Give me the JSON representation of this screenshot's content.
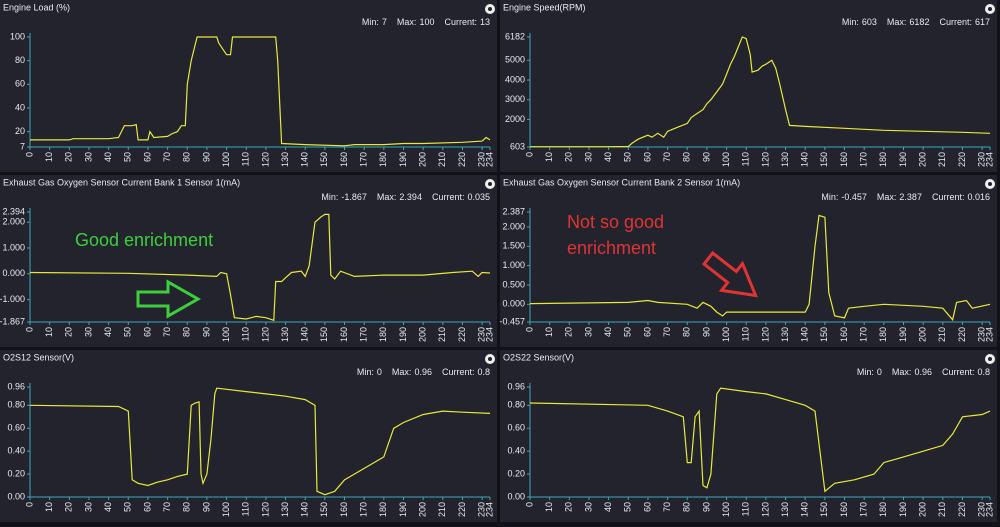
{
  "chart_data": [
    {
      "type": "line",
      "title": "Engine Load (%)",
      "stats": [
        {
          "label": "Min:",
          "value": 7
        },
        {
          "label": "Max:",
          "value": 100
        },
        {
          "label": "Current:",
          "value": 13
        }
      ],
      "x": [
        0,
        20,
        22,
        40,
        45,
        48,
        52,
        54,
        55,
        60,
        61,
        63,
        70,
        72,
        75,
        77,
        79,
        80,
        82,
        85,
        95,
        96,
        98,
        100,
        102,
        103,
        125,
        126,
        128,
        140,
        160,
        165,
        180,
        190,
        200,
        220,
        230,
        232,
        234
      ],
      "values": [
        13,
        13,
        14,
        14,
        15,
        25,
        25,
        26,
        13,
        13,
        20,
        15,
        16,
        18,
        20,
        25,
        25,
        60,
        80,
        100,
        100,
        95,
        90,
        85,
        85,
        100,
        100,
        80,
        10,
        9,
        8,
        9,
        9,
        10,
        10,
        11,
        12,
        15,
        13
      ],
      "color": "#e8e83a",
      "xlim": [
        0,
        234
      ],
      "xticks": [
        0,
        10,
        20,
        30,
        40,
        50,
        60,
        70,
        80,
        90,
        100,
        110,
        120,
        130,
        140,
        150,
        160,
        170,
        180,
        190,
        200,
        210,
        220,
        230,
        234
      ],
      "ylim": [
        7,
        100
      ],
      "yticks": [
        7,
        20,
        40,
        60,
        80,
        100
      ]
    },
    {
      "type": "line",
      "title": "Engine Speed(RPM)",
      "stats": [
        {
          "label": "Min:",
          "value": 603
        },
        {
          "label": "Max:",
          "value": 6182
        },
        {
          "label": "Current:",
          "value": 617
        }
      ],
      "x": [
        0,
        40,
        50,
        52,
        55,
        60,
        62,
        65,
        68,
        70,
        75,
        80,
        82,
        85,
        88,
        90,
        92,
        95,
        98,
        100,
        102,
        104,
        106,
        108,
        110,
        112,
        113,
        116,
        118,
        120,
        123,
        125,
        127,
        130,
        132,
        140,
        160,
        180,
        200,
        220,
        234
      ],
      "values": [
        620,
        620,
        630,
        800,
        1000,
        1200,
        1100,
        1300,
        1100,
        1400,
        1600,
        1800,
        2100,
        2300,
        2500,
        2800,
        3000,
        3400,
        3800,
        4300,
        4800,
        5200,
        5700,
        6182,
        6100,
        5300,
        4400,
        4500,
        4700,
        4800,
        5000,
        4600,
        3800,
        2500,
        1700,
        1650,
        1550,
        1450,
        1400,
        1350,
        1300
      ],
      "color": "#e8e83a",
      "xlim": [
        0,
        234
      ],
      "xticks": [
        0,
        10,
        20,
        30,
        40,
        50,
        60,
        70,
        80,
        90,
        100,
        110,
        120,
        130,
        140,
        150,
        160,
        170,
        180,
        190,
        200,
        210,
        220,
        230,
        234
      ],
      "ylim": [
        603,
        6182
      ],
      "yticks": [
        603,
        2000,
        3000,
        4000,
        5000,
        6182
      ]
    },
    {
      "type": "line",
      "title": "Exhaust Gas Oxygen Sensor Current Bank 1 Sensor 1(mA)",
      "stats": [
        {
          "label": "Min:",
          "value": -1.867
        },
        {
          "label": "Max:",
          "value": 2.394
        },
        {
          "label": "Current:",
          "value": 0.035
        }
      ],
      "annotation": [
        "Good enrichment"
      ],
      "x": [
        0,
        50,
        80,
        95,
        97,
        100,
        102,
        104,
        110,
        115,
        120,
        124,
        125,
        128,
        130,
        133,
        138,
        140,
        142,
        145,
        148,
        150,
        152,
        153,
        155,
        158,
        165,
        180,
        200,
        215,
        225,
        228,
        230,
        234
      ],
      "values": [
        0.05,
        0.02,
        -0.05,
        -0.1,
        0.05,
        0.0,
        -0.8,
        -1.7,
        -1.75,
        -1.65,
        -1.7,
        -1.8,
        -0.3,
        -0.3,
        -0.15,
        0.05,
        0.1,
        -0.1,
        0.3,
        2.0,
        2.2,
        2.3,
        2.3,
        -0.05,
        -0.2,
        0.1,
        -0.1,
        -0.05,
        -0.05,
        0.05,
        0.1,
        -0.1,
        0.05,
        0.03
      ],
      "color": "#e8e83a",
      "xlim": [
        0,
        234
      ],
      "xticks": [
        0,
        10,
        20,
        30,
        40,
        50,
        60,
        70,
        80,
        90,
        100,
        110,
        120,
        130,
        140,
        150,
        160,
        170,
        180,
        190,
        200,
        210,
        220,
        230,
        234
      ],
      "ylim": [
        -1.867,
        2.394
      ],
      "yticks": [
        -1.867,
        {
          "value": -1,
          "label": "-1.000"
        },
        {
          "value": 0,
          "label": "0.000"
        },
        {
          "value": 1,
          "label": "1.000"
        },
        {
          "value": 2,
          "label": "2.000"
        },
        2.394
      ]
    },
    {
      "type": "line",
      "title": "Exhaust Gas Oxygen Sensor Current Bank 2 Sensor 1(mA)",
      "stats": [
        {
          "label": "Min:",
          "value": -0.457
        },
        {
          "label": "Max:",
          "value": 2.387
        },
        {
          "label": "Current:",
          "value": 0.016
        }
      ],
      "annotation": [
        "Not so good",
        "enrichment"
      ],
      "x": [
        0,
        50,
        60,
        65,
        80,
        85,
        88,
        92,
        95,
        98,
        100,
        140,
        142,
        145,
        147,
        150,
        152,
        155,
        160,
        162,
        170,
        180,
        200,
        210,
        215,
        217,
        222,
        225,
        234
      ],
      "values": [
        0.02,
        0.05,
        0.1,
        0.05,
        0.0,
        -0.1,
        0.05,
        -0.05,
        -0.2,
        -0.3,
        -0.2,
        -0.2,
        0.0,
        1.5,
        2.3,
        2.25,
        0.3,
        -0.3,
        -0.35,
        -0.1,
        -0.05,
        0.0,
        -0.05,
        -0.1,
        -0.4,
        0.05,
        0.1,
        -0.1,
        0.0
      ],
      "color": "#e8e83a",
      "xlim": [
        0,
        234
      ],
      "xticks": [
        0,
        10,
        20,
        30,
        40,
        50,
        60,
        70,
        80,
        90,
        100,
        110,
        120,
        130,
        140,
        150,
        160,
        170,
        180,
        190,
        200,
        210,
        220,
        230,
        234
      ],
      "ylim": [
        -0.457,
        2.387
      ],
      "yticks": [
        -0.457,
        {
          "value": 0,
          "label": "0.000"
        },
        {
          "value": 0.5,
          "label": "0.500"
        },
        {
          "value": 1,
          "label": "1.000"
        },
        {
          "value": 1.5,
          "label": "1.500"
        },
        {
          "value": 2,
          "label": "2.000"
        },
        2.387
      ]
    },
    {
      "type": "line",
      "title": "O2S12 Sensor(V)",
      "stats": [
        {
          "label": "Min:",
          "value": 0
        },
        {
          "label": "Max:",
          "value": 0.96
        },
        {
          "label": "Current:",
          "value": 0.8
        }
      ],
      "x": [
        0,
        45,
        50,
        52,
        55,
        60,
        65,
        70,
        75,
        80,
        82,
        84,
        86,
        87,
        88,
        90,
        92,
        94,
        95,
        100,
        110,
        120,
        130,
        140,
        145,
        146,
        150,
        155,
        160,
        170,
        180,
        185,
        190,
        200,
        210,
        220,
        234
      ],
      "values": [
        0.8,
        0.79,
        0.75,
        0.15,
        0.12,
        0.1,
        0.13,
        0.15,
        0.18,
        0.2,
        0.8,
        0.82,
        0.83,
        0.2,
        0.12,
        0.2,
        0.5,
        0.9,
        0.95,
        0.94,
        0.92,
        0.9,
        0.88,
        0.85,
        0.8,
        0.05,
        0.02,
        0.05,
        0.15,
        0.25,
        0.35,
        0.6,
        0.65,
        0.72,
        0.75,
        0.74,
        0.73
      ],
      "color": "#e8e83a",
      "xlim": [
        0,
        234
      ],
      "xticks": [
        0,
        10,
        20,
        30,
        40,
        50,
        60,
        70,
        80,
        90,
        100,
        110,
        120,
        130,
        140,
        150,
        160,
        170,
        180,
        190,
        200,
        210,
        220,
        230,
        234
      ],
      "ylim": [
        0,
        0.96
      ],
      "yticks": [
        {
          "value": 0,
          "label": "0.00"
        },
        {
          "value": 0.2,
          "label": "0.20"
        },
        {
          "value": 0.4,
          "label": "0.40"
        },
        {
          "value": 0.6,
          "label": "0.60"
        },
        {
          "value": 0.8,
          "label": "0.80"
        },
        0.96
      ]
    },
    {
      "type": "line",
      "title": "O2S22 Sensor(V)",
      "stats": [
        {
          "label": "Min:",
          "value": 0
        },
        {
          "label": "Max:",
          "value": 0.96
        },
        {
          "label": "Current:",
          "value": 0.8
        }
      ],
      "x": [
        0,
        60,
        70,
        78,
        80,
        82,
        84,
        86,
        88,
        90,
        92,
        95,
        97,
        110,
        120,
        130,
        140,
        145,
        150,
        155,
        165,
        175,
        180,
        190,
        200,
        210,
        215,
        220,
        230,
        234
      ],
      "values": [
        0.82,
        0.8,
        0.75,
        0.7,
        0.3,
        0.3,
        0.7,
        0.75,
        0.1,
        0.08,
        0.2,
        0.9,
        0.95,
        0.92,
        0.9,
        0.85,
        0.8,
        0.75,
        0.05,
        0.12,
        0.15,
        0.2,
        0.3,
        0.35,
        0.4,
        0.45,
        0.55,
        0.7,
        0.72,
        0.75
      ],
      "color": "#e8e83a",
      "xlim": [
        0,
        234
      ],
      "xticks": [
        0,
        10,
        20,
        30,
        40,
        50,
        60,
        70,
        80,
        90,
        100,
        110,
        120,
        130,
        140,
        150,
        160,
        170,
        180,
        190,
        200,
        210,
        220,
        230,
        234
      ],
      "ylim": [
        0,
        0.96
      ],
      "yticks": [
        {
          "value": 0,
          "label": "0.00"
        },
        {
          "value": 0.2,
          "label": "0.20"
        },
        {
          "value": 0.4,
          "label": "0.40"
        },
        {
          "value": 0.6,
          "label": "0.60"
        },
        {
          "value": 0.8,
          "label": "0.80"
        },
        0.96
      ]
    }
  ]
}
